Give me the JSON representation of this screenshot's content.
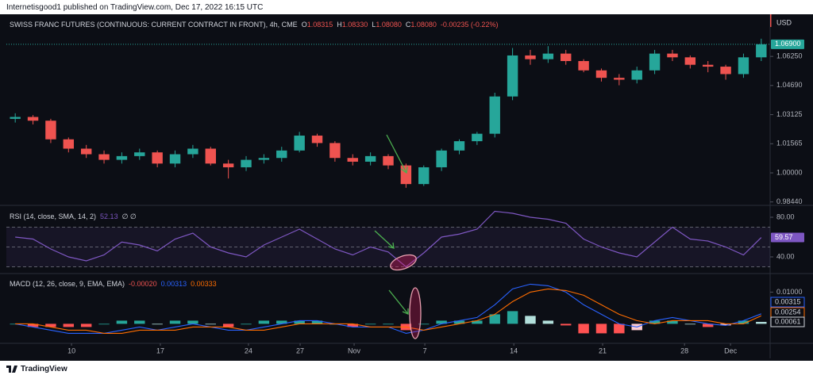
{
  "header": {
    "publisher": "Internetisgood1 published on TradingView.com, Dec 17, 2022 16:15 UTC",
    "currency": "USD",
    "brand": "TradingView"
  },
  "chart_data": [
    {
      "type": "candlestick",
      "title": "SWISS FRANC FUTURES (CONTINUOUS: CURRENT CONTRACT IN FRONT), 4h, CME",
      "ohlc_legend": [
        {
          "key": "O",
          "value": "1.08315"
        },
        {
          "key": "H",
          "value": "1.08330"
        },
        {
          "key": "L",
          "value": "1.08080"
        },
        {
          "key": "C",
          "value": "1.08080"
        }
      ],
      "change": "-0.00235 (-0.22%)",
      "open": [
        1.029,
        1.03,
        1.028,
        1.018,
        1.013,
        1.01,
        1.007,
        1.009,
        1.011,
        1.005,
        1.01,
        1.013,
        1.005,
        1.003,
        1.007,
        1.008,
        1.012,
        1.02,
        1.016,
        1.008,
        1.006,
        1.009,
        1.004,
        0.994,
        1.003,
        1.012,
        1.017,
        1.021,
        1.041,
        1.063,
        1.061,
        1.064,
        1.06,
        1.055,
        1.051,
        1.05,
        1.055,
        1.064,
        1.062,
        1.058,
        1.057,
        1.053,
        1.062
      ],
      "high": [
        1.032,
        1.031,
        1.029,
        1.019,
        1.015,
        1.012,
        1.011,
        1.013,
        1.012,
        1.012,
        1.015,
        1.014,
        1.007,
        1.009,
        1.01,
        1.014,
        1.022,
        1.021,
        1.017,
        1.01,
        1.011,
        1.01,
        1.005,
        1.004,
        1.013,
        1.018,
        1.022,
        1.043,
        1.067,
        1.066,
        1.068,
        1.066,
        1.061,
        1.056,
        1.053,
        1.057,
        1.066,
        1.066,
        1.063,
        1.06,
        1.058,
        1.064,
        1.072
      ],
      "low": [
        1.027,
        1.026,
        1.016,
        1.011,
        1.008,
        1.005,
        1.005,
        1.007,
        1.003,
        1.003,
        1.008,
        1.004,
        0.997,
        1.001,
        1.005,
        1.006,
        1.011,
        1.014,
        1.006,
        1.004,
        1.004,
        1.002,
        0.992,
        0.993,
        1.001,
        1.01,
        1.015,
        1.019,
        1.039,
        1.058,
        1.059,
        1.058,
        1.054,
        1.049,
        1.047,
        1.048,
        1.053,
        1.06,
        1.056,
        1.054,
        1.05,
        1.051,
        1.06
      ],
      "close": [
        1.03,
        1.028,
        1.018,
        1.013,
        1.01,
        1.007,
        1.009,
        1.011,
        1.005,
        1.01,
        1.013,
        1.005,
        1.003,
        1.007,
        1.008,
        1.012,
        1.02,
        1.016,
        1.008,
        1.006,
        1.009,
        1.004,
        0.994,
        1.003,
        1.012,
        1.017,
        1.021,
        1.041,
        1.063,
        1.061,
        1.064,
        1.06,
        1.055,
        1.051,
        1.05,
        1.055,
        1.064,
        1.062,
        1.058,
        1.057,
        1.053,
        1.062,
        1.069
      ],
      "up_color": "#26a69a",
      "down_color": "#ef5350",
      "xlim": [
        0,
        43
      ],
      "xticks": [
        {
          "value": 3.67,
          "label": "10"
        },
        {
          "value": 8.67,
          "label": "17"
        },
        {
          "value": 13.63,
          "label": "24"
        },
        {
          "value": 16.54,
          "label": "27"
        },
        {
          "value": 19.58,
          "label": "Nov"
        },
        {
          "value": 23.56,
          "label": "7"
        },
        {
          "value": 28.57,
          "label": "14"
        },
        {
          "value": 33.57,
          "label": "21"
        },
        {
          "value": 38.18,
          "label": "28"
        },
        {
          "value": 40.77,
          "label": "Dec"
        }
      ],
      "ylim": [
        0.983,
        1.0834
      ],
      "yticks": [
        {
          "value": 0.9844,
          "label": "0.98440"
        },
        {
          "value": 1.0,
          "label": "1.00000"
        },
        {
          "value": 1.01565,
          "label": "1.01565"
        },
        {
          "value": 1.03125,
          "label": "1.03125"
        },
        {
          "value": 1.0469,
          "label": "1.04690"
        },
        {
          "value": 1.0625,
          "label": "1.06250"
        }
      ],
      "last_price": {
        "value": 1.069,
        "label": "1.06900"
      }
    },
    {
      "type": "line",
      "title": "RSI (14, close, SMA, 14, 2)",
      "legend_value": "52.13",
      "icons": "∅ ∅",
      "values": [
        60,
        58,
        48,
        40,
        36,
        42,
        55,
        52,
        46,
        58,
        64,
        50,
        44,
        40,
        52,
        60,
        68,
        58,
        48,
        42,
        50,
        45,
        30,
        44,
        60,
        63,
        68,
        86,
        84,
        80,
        78,
        74,
        58,
        50,
        44,
        40,
        55,
        70,
        58,
        56,
        50,
        42,
        59.57
      ],
      "color": "#7e57c2",
      "band_lines": [
        70,
        50,
        30
      ],
      "xlim": [
        0,
        43
      ],
      "ylim": [
        24.8,
        89.6
      ],
      "yticks": [
        {
          "value": 40,
          "label": "40.00"
        },
        {
          "value": 80,
          "label": "80.00"
        }
      ]
    },
    {
      "type": "macd",
      "title": "MACD (12, 26, close, 9, EMA, EMA)",
      "legend_values": [
        {
          "value": "-0.00020",
          "color": "#ef5350"
        },
        {
          "value": "0.00313",
          "color": "#2962ff"
        },
        {
          "value": "0.00333",
          "color": "#ff6d00"
        }
      ],
      "histogram": [
        0,
        -0.001,
        -0.001,
        -0.001,
        -0.001,
        0,
        0.001,
        0.001,
        0,
        0.001,
        0.001,
        0,
        -0.001,
        0,
        0.001,
        0.001,
        0.001,
        0.001,
        0,
        -0.001,
        0,
        0,
        -0.002,
        0,
        0.001,
        0.001,
        0.001,
        0.003,
        0.004,
        0.0025,
        0.001,
        -0.0005,
        -0.003,
        -0.003,
        -0.003,
        -0.002,
        0.001,
        0.001,
        0,
        -0.001,
        -0.0005,
        0.001,
        0.00061
      ],
      "macd": [
        0,
        -0.001,
        -0.002,
        -0.003,
        -0.003,
        -0.003,
        -0.002,
        -0.001,
        -0.002,
        -0.001,
        0,
        -0.001,
        -0.002,
        -0.002,
        -0.001,
        0,
        0.001,
        0.001,
        0,
        -0.001,
        -0.001,
        -0.001,
        -0.003,
        -0.002,
        0,
        0.001,
        0.002,
        0.006,
        0.011,
        0.0125,
        0.012,
        0.01,
        0.006,
        0.003,
        0,
        -0.001,
        0.001,
        0.002,
        0.001,
        0,
        -0.0005,
        0.001,
        0.00315
      ],
      "signal": [
        0,
        0,
        -0.001,
        -0.002,
        -0.002,
        -0.003,
        -0.003,
        -0.002,
        -0.002,
        -0.002,
        -0.001,
        -0.001,
        -0.001,
        -0.002,
        -0.002,
        -0.001,
        0,
        0,
        0,
        0,
        -0.001,
        -0.001,
        -0.001,
        -0.002,
        -0.001,
        0,
        0.001,
        0.003,
        0.007,
        0.01,
        0.011,
        0.0105,
        0.009,
        0.006,
        0.003,
        0.001,
        0,
        0.001,
        0.001,
        0.001,
        0,
        0,
        0.00254
      ],
      "macd_color": "#2962ff",
      "signal_color": "#ff6d00",
      "histogram_colors": {
        "rising_up": "#26a69a",
        "falling_up": "#b2dfdb",
        "falling_down": "#ff5252",
        "rising_down": "#ffcdd2"
      },
      "xlim": [
        0,
        43
      ],
      "ylim": [
        -0.0059,
        0.01535
      ],
      "yticks": [
        {
          "value": 0.01,
          "label": "0.01000"
        }
      ]
    }
  ]
}
